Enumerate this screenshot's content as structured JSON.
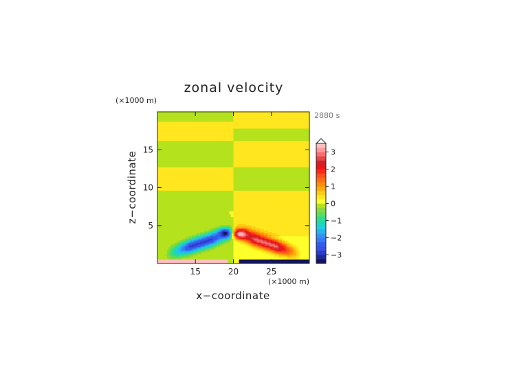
{
  "chart_data": {
    "type": "heatmap",
    "title": "zonal velocity",
    "time_label": "2880 s",
    "xlabel": "x−coordinate",
    "ylabel": "z−coordinate",
    "x_unit": "(×1000 m)",
    "y_unit": "(×1000 m)",
    "xlim": [
      10,
      30
    ],
    "ylim": [
      0,
      20
    ],
    "x_ticks": [
      {
        "value": 15,
        "label": "15"
      },
      {
        "value": 20,
        "label": "20"
      },
      {
        "value": 25,
        "label": "25"
      }
    ],
    "y_ticks": [
      {
        "value": 5,
        "label": "5"
      },
      {
        "value": 10,
        "label": "10"
      },
      {
        "value": 15,
        "label": "15"
      }
    ],
    "colorbar": {
      "levels": [
        -3.5,
        -3.25,
        -3.0,
        -2.75,
        -2.5,
        -2.25,
        -2.0,
        -1.75,
        -1.5,
        -1.25,
        -1.0,
        -0.75,
        -0.5,
        -0.25,
        0.0,
        0.25,
        0.5,
        0.75,
        1.0,
        1.25,
        1.5,
        1.75,
        2.0,
        2.25,
        2.5,
        2.75,
        3.0,
        3.25,
        3.5
      ],
      "colors": [
        "#14145a",
        "#1e2a96",
        "#2a3cc8",
        "#3c50e6",
        "#2e5ff0",
        "#3a78f2",
        "#2f95f2",
        "#2ab4ee",
        "#20cce6",
        "#20d6b6",
        "#30dc8c",
        "#5ade5a",
        "#8cd83c",
        "#b4e21c",
        "#ffff2a",
        "#ffe61e",
        "#ffcc14",
        "#ffaa0a",
        "#ff8c0a",
        "#ff6e14",
        "#ff501e",
        "#ff2814",
        "#ee1414",
        "#d21e28",
        "#e64646",
        "#ff6e6e",
        "#ff9a9a",
        "#ffc0c0"
      ],
      "extend_max": true,
      "ticks": [
        {
          "value": 3,
          "label": "3"
        },
        {
          "value": 2,
          "label": "2"
        },
        {
          "value": 1,
          "label": "1"
        },
        {
          "value": 0,
          "label": "0"
        },
        {
          "value": -1,
          "label": "−1"
        },
        {
          "value": -2,
          "label": "−2"
        },
        {
          "value": -3,
          "label": "−3"
        }
      ]
    },
    "field": {
      "base_value": 0.1,
      "note_bands_z": [
        {
          "z_min": 0.0,
          "z_max": 3.7,
          "left_value": 0.0,
          "right_value": 0.0
        },
        {
          "z_min": 3.7,
          "z_max": 7.0,
          "left_value": 0.0,
          "right_value": 0.4
        },
        {
          "z_min": 7.0,
          "z_max": 9.6,
          "left_value": -0.15,
          "right_value": 0.4
        },
        {
          "z_min": 9.6,
          "z_max": 12.7,
          "left_value": 0.4,
          "right_value": -0.15
        },
        {
          "z_min": 12.7,
          "z_max": 16.2,
          "left_value": -0.15,
          "right_value": 0.4
        },
        {
          "z_min": 16.2,
          "z_max": 17.8,
          "left_value": 0.4,
          "right_value": -0.15
        },
        {
          "z_min": 17.8,
          "z_max": 18.8,
          "left_value": 0.4,
          "right_value": 0.4
        },
        {
          "z_min": 18.8,
          "z_max": 20.0,
          "left_value": -0.15,
          "right_value": 0.4
        }
      ],
      "features": [
        {
          "kind": "surface_strip",
          "x_range": [
            10,
            19.3
          ],
          "z_range": [
            0.0,
            0.6
          ],
          "value": 3.3
        },
        {
          "kind": "surface_strip",
          "x_range": [
            20.8,
            30
          ],
          "z_range": [
            0.0,
            0.6
          ],
          "value": -3.3
        },
        {
          "kind": "jet",
          "x_range": [
            12.0,
            19.5
          ],
          "z_center_start": 1.5,
          "z_center_end": 4.0,
          "value": -2.8
        },
        {
          "kind": "jet",
          "x_range": [
            20.5,
            28.0
          ],
          "z_center_start": 4.0,
          "z_center_end": 1.5,
          "value": 2.8
        },
        {
          "kind": "core",
          "x": 18.9,
          "z": 4.0,
          "value": -3.4
        },
        {
          "kind": "core",
          "x": 21.0,
          "z": 3.9,
          "value": 3.4
        }
      ]
    }
  }
}
